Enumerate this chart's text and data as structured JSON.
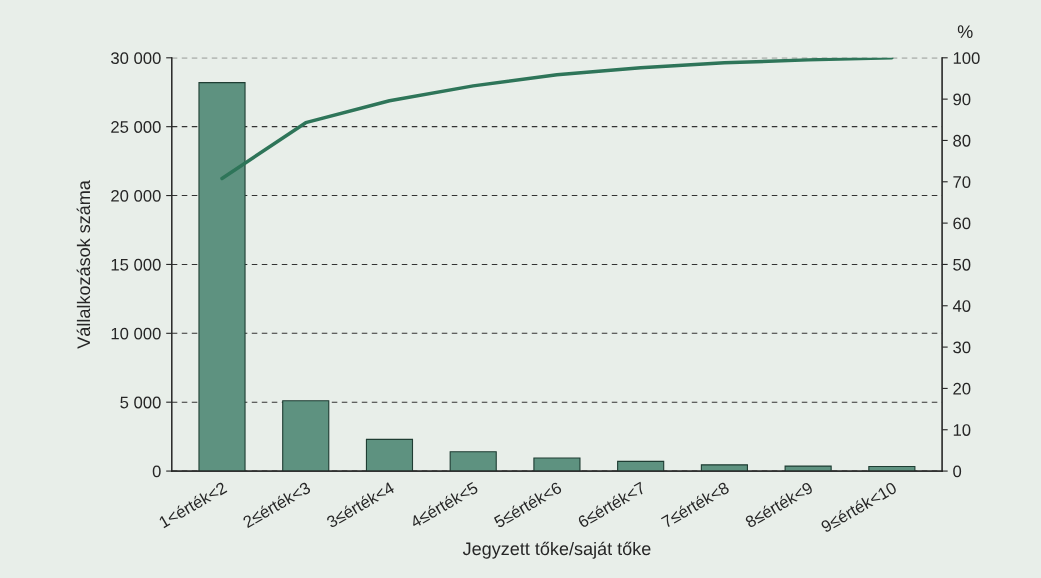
{
  "chart_data": {
    "type": "bar",
    "categories": [
      "1<érték<2",
      "2≤érték<3",
      "3≤érték<4",
      "4≤érték<5",
      "5≤érték<6",
      "6≤érték<7",
      "7≤érték<8",
      "8≤érték<9",
      "9≤érték<10"
    ],
    "series": [
      {
        "color": "#5e9280",
        "values": [
          28200,
          5100,
          2300,
          1400,
          950,
          700,
          450,
          360,
          330
        ]
      },
      {
        "type": "line",
        "axis": "y2",
        "color": "#2e7559",
        "values": [
          70.8,
          84.3,
          89.6,
          93.2,
          95.9,
          97.6,
          98.8,
          99.5,
          100
        ]
      }
    ],
    "xlabel": "Jegyzett tőke/saját tőke",
    "ylabel": "Vállalkozások száma",
    "y2label": "%",
    "ylim": [
      0,
      30000
    ],
    "yticks": [
      0,
      {
        "value": 5000,
        "label": "5 000"
      },
      {
        "value": 10000,
        "label": "10 000"
      },
      {
        "value": 15000,
        "label": "15 000"
      },
      {
        "value": 20000,
        "label": "20 000"
      },
      {
        "value": 25000,
        "label": "25 000"
      },
      {
        "value": 30000,
        "label": "30 000"
      }
    ],
    "y2lim": [
      0,
      100
    ],
    "y2ticks": [
      0,
      10,
      20,
      30,
      40,
      50,
      60,
      70,
      80,
      90,
      100
    ],
    "grid": "y",
    "line_style": "solid",
    "marker": "none"
  }
}
